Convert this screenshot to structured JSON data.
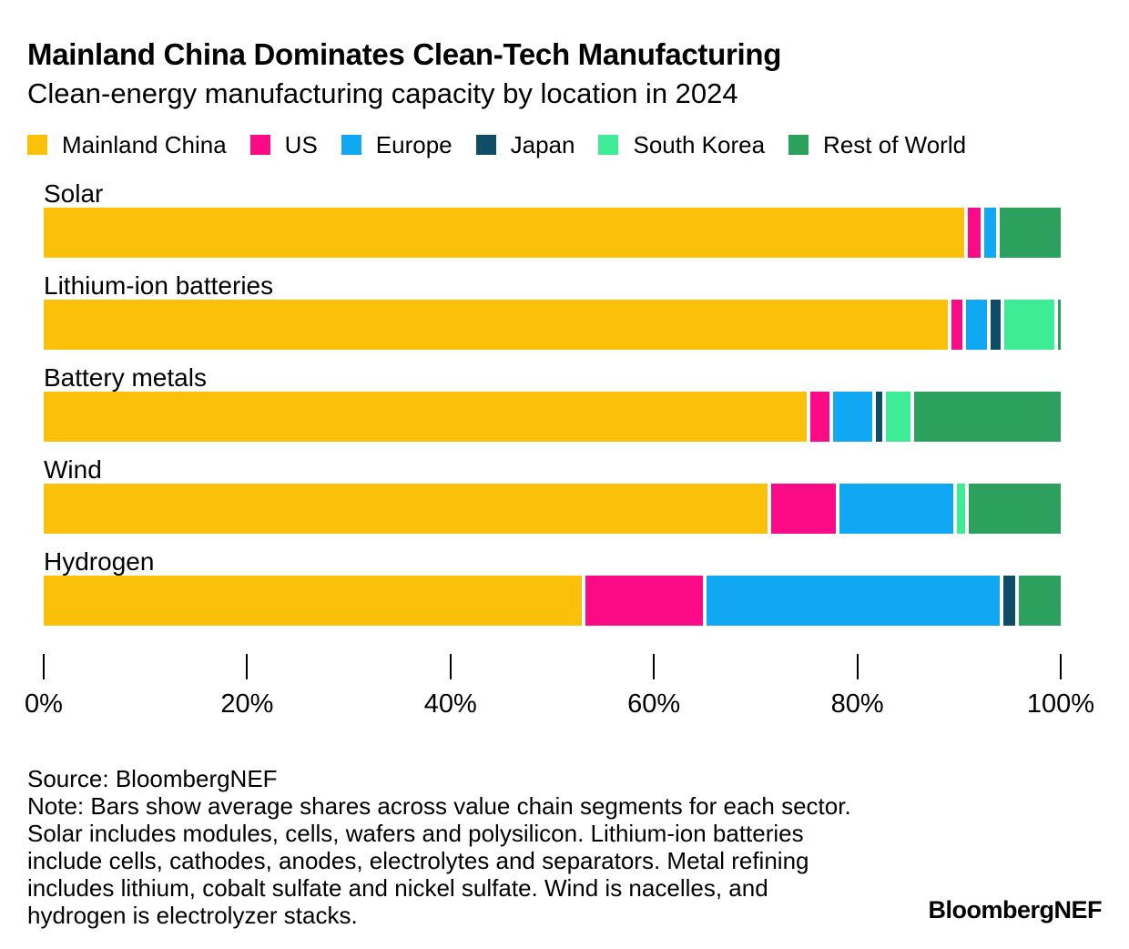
{
  "header": {
    "title": "Mainland China Dominates Clean-Tech Manufacturing",
    "subtitle": "Clean-energy manufacturing capacity by location in 2024"
  },
  "chart_data": {
    "type": "bar",
    "stacked": true,
    "orientation": "horizontal",
    "title": "Mainland China Dominates Clean-Tech Manufacturing",
    "subtitle": "Clean-energy manufacturing capacity by location in 2024",
    "categories": [
      "Solar",
      "Lithium-ion batteries",
      "Battery metals",
      "Wind",
      "Hydrogen"
    ],
    "series": [
      {
        "name": "Mainland China",
        "color": "#FAC00A",
        "values": [
          91.0,
          89.3,
          75.5,
          71.7,
          53.1
        ]
      },
      {
        "name": "US",
        "color": "#FB0A85",
        "values": [
          1.3,
          1.1,
          1.9,
          6.4,
          11.6
        ]
      },
      {
        "name": "Europe",
        "color": "#10A8F2",
        "values": [
          1.2,
          2.1,
          3.8,
          11.3,
          28.9
        ]
      },
      {
        "name": "Japan",
        "color": "#0F4D66",
        "values": [
          0,
          1.0,
          0.7,
          0,
          1.2
        ]
      },
      {
        "name": "South Korea",
        "color": "#3FEC96",
        "values": [
          0,
          4.9,
          2.4,
          0.8,
          0
        ]
      },
      {
        "name": "Rest of World",
        "color": "#2BA15D",
        "values": [
          6.0,
          0.3,
          14.5,
          9.1,
          4.1
        ]
      }
    ],
    "unit": "%",
    "xlim": [
      0,
      100
    ],
    "x_ticks": [
      {
        "value": 0,
        "label": "0%"
      },
      {
        "value": 20,
        "label": "20%"
      },
      {
        "value": 40,
        "label": "40%"
      },
      {
        "value": 60,
        "label": "60%"
      },
      {
        "value": 80,
        "label": "80%"
      },
      {
        "value": 100,
        "label": "100%"
      }
    ],
    "legend_position": "top",
    "grid": false
  },
  "footer": {
    "source": "Source: BloombergNEF",
    "note_lines": [
      "Note: Bars show average shares across value chain segments for each sector.",
      "Solar includes modules, cells, wafers and polysilicon. Lithium-ion batteries",
      "include cells, cathodes, anodes, electrolytes and separators. Metal refining",
      "includes lithium, cobalt sulfate and nickel sulfate. Wind is nacelles, and",
      "hydrogen is electrolyzer stacks."
    ],
    "logo": "BloombergNEF"
  }
}
